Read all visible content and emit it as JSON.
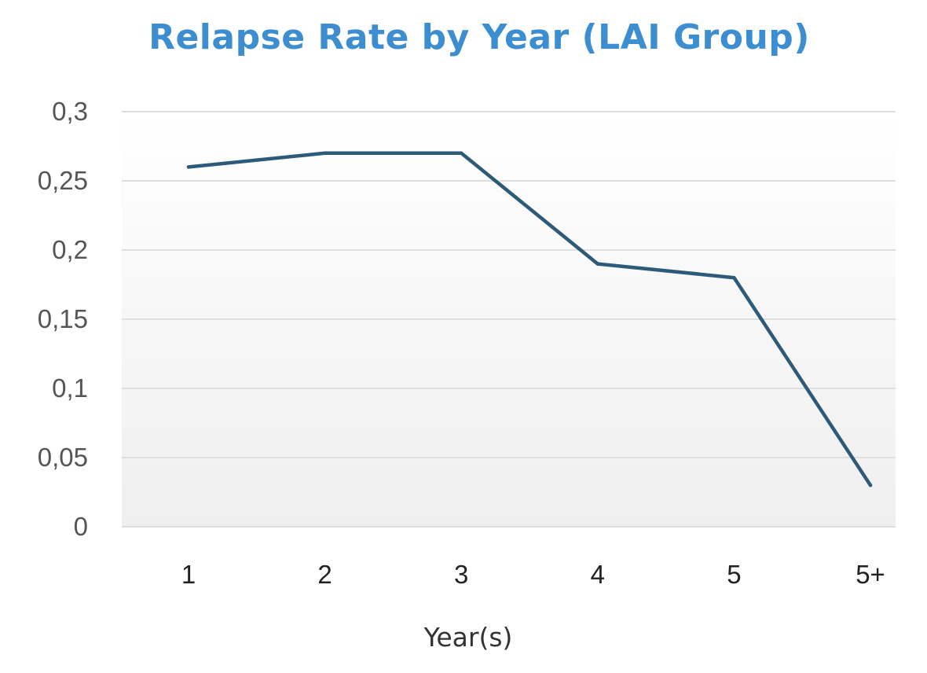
{
  "chart_data": {
    "type": "line",
    "title": "Relapse Rate by Year (LAI Group)",
    "xlabel": "Year(s)",
    "ylabel": "",
    "categories": [
      "1",
      "2",
      "3",
      "4",
      "5",
      "5+"
    ],
    "series": [
      {
        "name": "LAI Group",
        "values": [
          0.26,
          0.27,
          0.27,
          0.19,
          0.18,
          0.03
        ],
        "color": "#2d5a78"
      }
    ],
    "ylim": [
      0,
      0.3
    ],
    "yticks": [
      0,
      0.05,
      0.1,
      0.15,
      0.2,
      0.25,
      0.3
    ],
    "ytick_labels": [
      "0",
      "0,05",
      "0,1",
      "0,15",
      "0,2",
      "0,25",
      "0,3"
    ],
    "grid": true,
    "legend": "none"
  }
}
